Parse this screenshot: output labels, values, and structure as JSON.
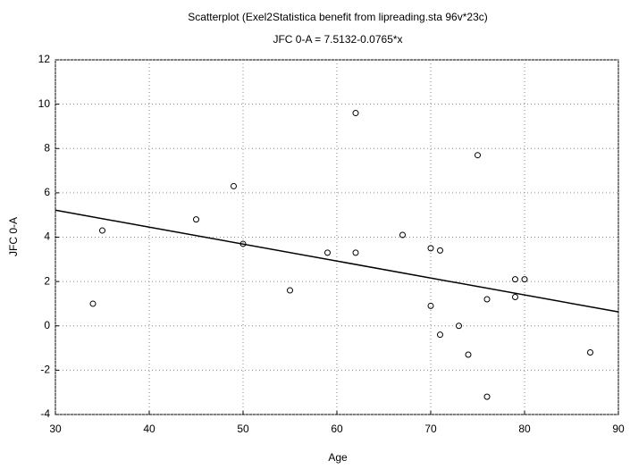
{
  "chart_data": {
    "type": "scatter",
    "title": "Scatterplot (Exel2Statistica benefit from lipreading.sta 96v*23c)",
    "subtitle": "JFC 0-A = 7.5132-0.0765*x",
    "x_label": "Age",
    "y_label": "JFC 0-A",
    "x": [
      34,
      35,
      45,
      49,
      50,
      55,
      59,
      62,
      62,
      67,
      70,
      71,
      70,
      71,
      73,
      74,
      75,
      76,
      76,
      79,
      79,
      80,
      87
    ],
    "values": [
      1.0,
      4.3,
      4.8,
      6.3,
      3.7,
      1.6,
      3.3,
      9.6,
      3.3,
      4.1,
      3.5,
      3.4,
      0.9,
      -0.4,
      0.0,
      -1.3,
      7.7,
      1.2,
      -3.2,
      2.1,
      1.3,
      2.1,
      -1.2
    ],
    "color": "#000000",
    "fit": {
      "intercept": 7.5132,
      "slope": -0.0765
    },
    "xlim": [
      30,
      90
    ],
    "xticks": [
      30,
      40,
      50,
      60,
      70,
      80,
      90
    ],
    "ylim": [
      -4,
      12
    ],
    "yticks": [
      -4,
      -2,
      0,
      2,
      4,
      6,
      8,
      10,
      12
    ],
    "grid": true
  }
}
